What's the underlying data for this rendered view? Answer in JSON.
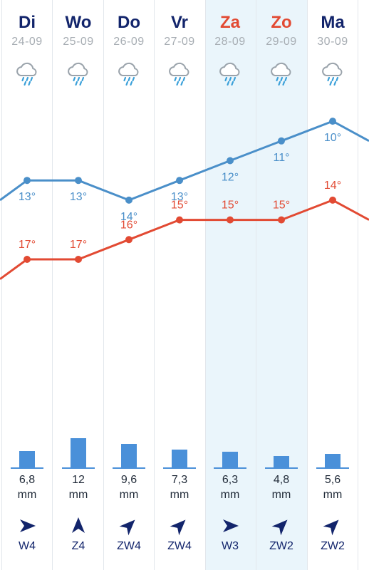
{
  "colors": {
    "max_line": "#e24a33",
    "min_line": "#4a8fc9",
    "rain_bar": "#4a90d9",
    "day_text": "#12246b",
    "weekend_text": "#e24a33",
    "date_text": "#a7adb3",
    "weekend_band": "#eaf5fb"
  },
  "days": [
    {
      "name": "Di",
      "date": "24-09",
      "weekend": false,
      "icon": "cloud-rain-icon",
      "max": "17°",
      "min": "13°",
      "rain_value": "6,8",
      "rain_unit": "mm",
      "wind_label": "W4",
      "wind_icon": "wind-arrow-icon"
    },
    {
      "name": "Wo",
      "date": "25-09",
      "weekend": false,
      "icon": "cloud-rain-icon",
      "max": "17°",
      "min": "13°",
      "rain_value": "12",
      "rain_unit": "mm",
      "wind_label": "Z4",
      "wind_icon": "wind-arrow-icon"
    },
    {
      "name": "Do",
      "date": "26-09",
      "weekend": false,
      "icon": "cloud-rain-icon",
      "max": "16°",
      "min": "14°",
      "rain_value": "9,6",
      "rain_unit": "mm",
      "wind_label": "ZW4",
      "wind_icon": "wind-arrow-icon"
    },
    {
      "name": "Vr",
      "date": "27-09",
      "weekend": false,
      "icon": "cloud-rain-icon",
      "max": "15°",
      "min": "13°",
      "rain_value": "7,3",
      "rain_unit": "mm",
      "wind_label": "ZW4",
      "wind_icon": "wind-arrow-icon"
    },
    {
      "name": "Za",
      "date": "28-09",
      "weekend": true,
      "icon": "cloud-rain-icon",
      "max": "15°",
      "min": "12°",
      "rain_value": "6,3",
      "rain_unit": "mm",
      "wind_label": "W3",
      "wind_icon": "wind-arrow-icon"
    },
    {
      "name": "Zo",
      "date": "29-09",
      "weekend": true,
      "icon": "cloud-rain-icon",
      "max": "15°",
      "min": "11°",
      "rain_value": "4,8",
      "rain_unit": "mm",
      "wind_label": "ZW2",
      "wind_icon": "wind-arrow-icon"
    },
    {
      "name": "Ma",
      "date": "30-09",
      "weekend": false,
      "icon": "cloud-rain-icon",
      "max": "14°",
      "min": "10°",
      "rain_value": "5,6",
      "rain_unit": "mm",
      "wind_label": "ZW2",
      "wind_icon": "wind-arrow-icon"
    }
  ],
  "chart_data": {
    "type": "line",
    "categories": [
      "24-09",
      "25-09",
      "26-09",
      "27-09",
      "28-09",
      "29-09",
      "30-09"
    ],
    "series": [
      {
        "values": [
          17,
          17,
          16,
          15,
          15,
          15,
          14
        ],
        "lead_in": 18,
        "lead_out": 15
      },
      {
        "values": [
          13,
          13,
          14,
          13,
          12,
          11,
          10
        ],
        "lead_in": 14,
        "lead_out": 11
      }
    ],
    "rain_mm": [
      6.8,
      12,
      9.6,
      7.3,
      6.3,
      4.8,
      5.6
    ],
    "wind_bearing_deg": [
      90,
      0,
      45,
      45,
      90,
      45,
      45
    ]
  }
}
